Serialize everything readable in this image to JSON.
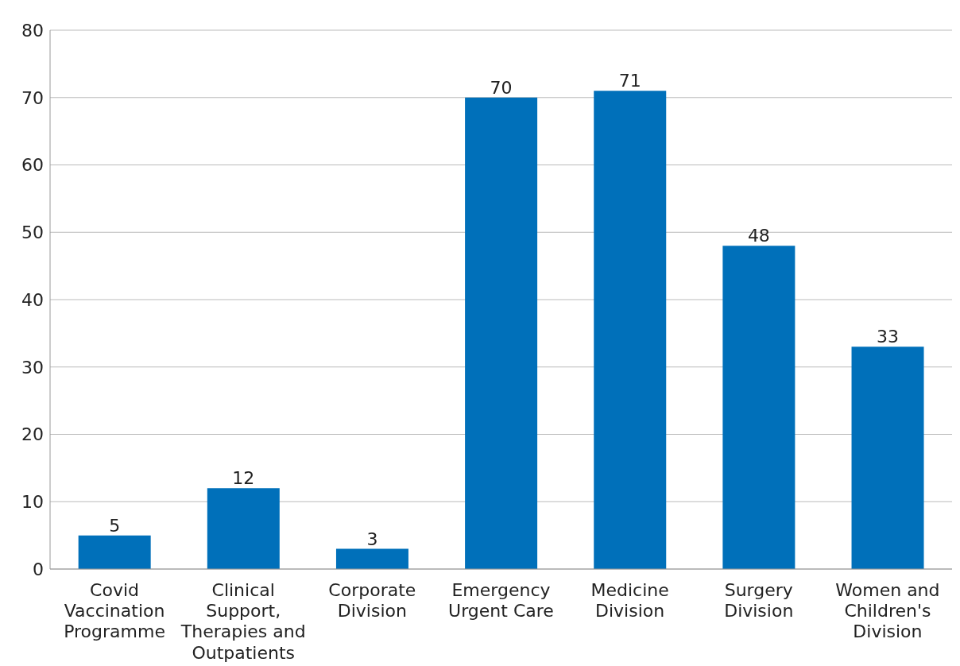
{
  "chart_data": {
    "type": "bar",
    "categories": [
      "Covid Vaccination Programme",
      "Clinical Support, Therapies and Outpatients",
      "Corporate Division",
      "Emergency Urgent Care",
      "Medicine Division",
      "Surgery Division",
      "Women and Children's Division"
    ],
    "values": [
      5,
      12,
      3,
      70,
      71,
      48,
      33
    ],
    "color": "#0070ba",
    "ylim": [
      0,
      80
    ],
    "yticks": [
      0,
      10,
      20,
      30,
      40,
      50,
      60,
      70,
      80
    ],
    "grid": "y",
    "data_labels": true
  }
}
